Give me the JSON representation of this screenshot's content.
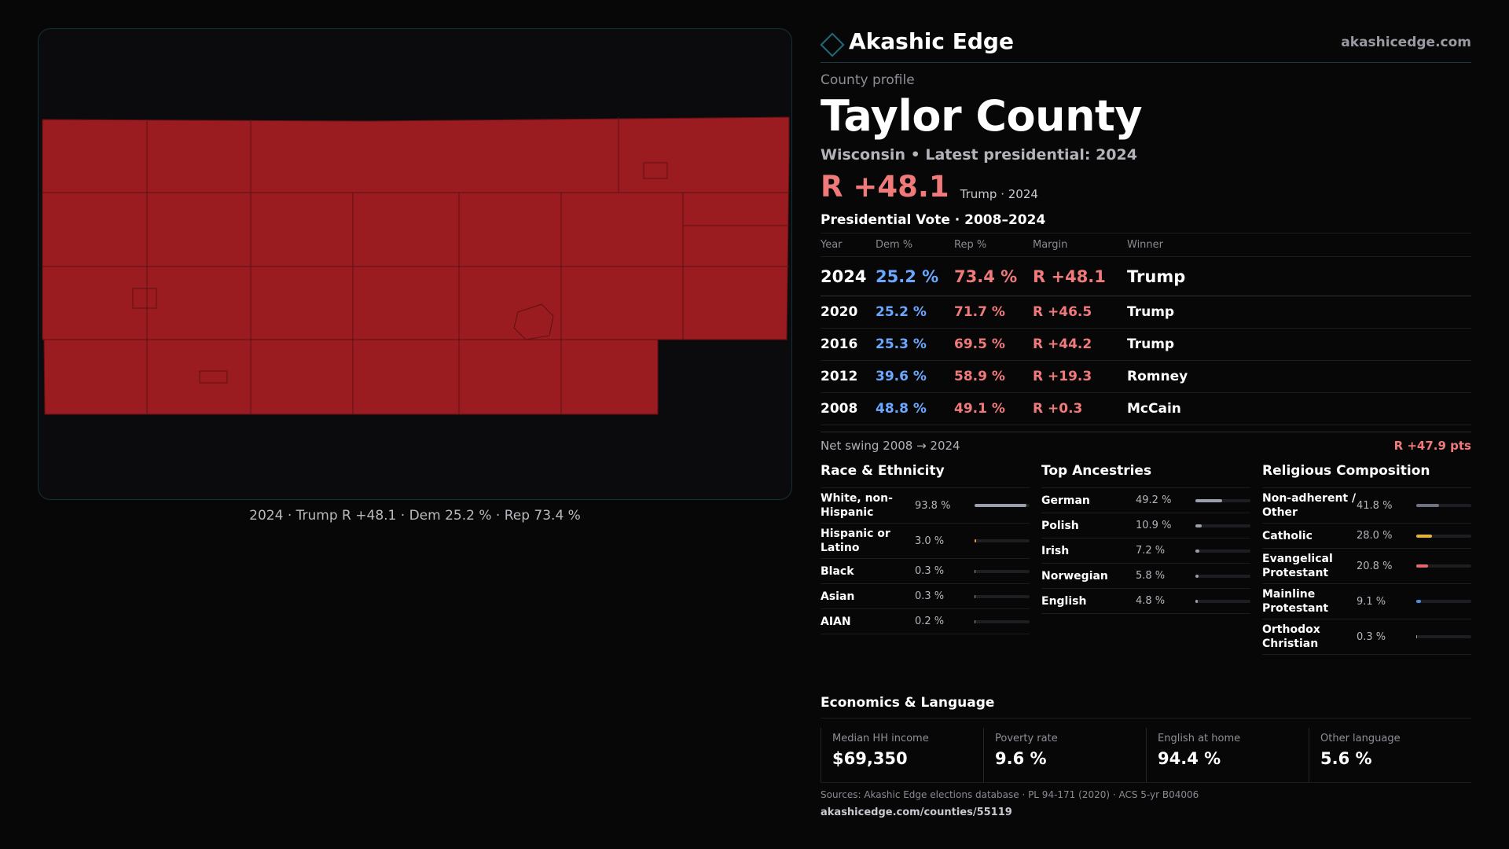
{
  "brand": {
    "name": "Akashic Edge",
    "url": "akashicedge.com",
    "accent": "#1f6b7a"
  },
  "profile": {
    "kicker": "County profile",
    "title": "Taylor County",
    "subtitle": "Wisconsin • Latest presidential: 2024",
    "headline_margin": "R +48.1",
    "headline_note": "Trump · 2024"
  },
  "map": {
    "caption": "2024 · Trump R +48.1 · Dem 25.2 % · Rep 73.4 %",
    "fill": "#9b1c20",
    "stroke": "#5e1013"
  },
  "votes": {
    "title": "Presidential Vote · 2008–2024",
    "headers": {
      "year": "Year",
      "dem": "Dem %",
      "rep": "Rep %",
      "margin": "Margin",
      "winner": "Winner"
    },
    "rows": [
      {
        "year": "2024",
        "dem": "25.2 %",
        "rep": "73.4 %",
        "margin": "R +48.1",
        "winner": "Trump"
      },
      {
        "year": "2020",
        "dem": "25.2 %",
        "rep": "71.7 %",
        "margin": "R +46.5",
        "winner": "Trump"
      },
      {
        "year": "2016",
        "dem": "25.3 %",
        "rep": "69.5 %",
        "margin": "R +44.2",
        "winner": "Trump"
      },
      {
        "year": "2012",
        "dem": "39.6 %",
        "rep": "58.9 %",
        "margin": "R +19.3",
        "winner": "Romney"
      },
      {
        "year": "2008",
        "dem": "48.8 %",
        "rep": "49.1 %",
        "margin": "R +0.3",
        "winner": "McCain"
      }
    ],
    "swing_label": "Net swing 2008 → 2024",
    "swing_value": "R +47.9 pts"
  },
  "race": {
    "title": "Race & Ethnicity",
    "items": [
      {
        "label": "White, non-Hispanic",
        "value": "93.8 %",
        "pct": 93.8,
        "color": "#9aa0ab"
      },
      {
        "label": "Hispanic or Latino",
        "value": "3.0 %",
        "pct": 3.0,
        "color": "#e0a21c"
      },
      {
        "label": "Black",
        "value": "0.3 %",
        "pct": 0.3,
        "color": "#9aa0ab"
      },
      {
        "label": "Asian",
        "value": "0.3 %",
        "pct": 0.3,
        "color": "#9aa0ab"
      },
      {
        "label": "AIAN",
        "value": "0.2 %",
        "pct": 0.2,
        "color": "#9aa0ab"
      }
    ]
  },
  "ancestry": {
    "title": "Top Ancestries",
    "items": [
      {
        "label": "German",
        "value": "49.2 %",
        "pct": 49.2,
        "color": "#9aa0ab"
      },
      {
        "label": "Polish",
        "value": "10.9 %",
        "pct": 10.9,
        "color": "#9aa0ab"
      },
      {
        "label": "Irish",
        "value": "7.2 %",
        "pct": 7.2,
        "color": "#9aa0ab"
      },
      {
        "label": "Norwegian",
        "value": "5.8 %",
        "pct": 5.8,
        "color": "#9aa0ab"
      },
      {
        "label": "English",
        "value": "4.8 %",
        "pct": 4.8,
        "color": "#9aa0ab"
      }
    ]
  },
  "religion": {
    "title": "Religious Composition",
    "items": [
      {
        "label": "Non-adherent / Other",
        "value": "41.8 %",
        "pct": 41.8,
        "color": "#6e7380"
      },
      {
        "label": "Catholic",
        "value": "28.0 %",
        "pct": 28.0,
        "color": "#e0b43a"
      },
      {
        "label": "Evangelical Protestant",
        "value": "20.8 %",
        "pct": 20.8,
        "color": "#e06a6a"
      },
      {
        "label": "Mainline Protestant",
        "value": "9.1 %",
        "pct": 9.1,
        "color": "#4a8fe0"
      },
      {
        "label": "Orthodox Christian",
        "value": "0.3 %",
        "pct": 0.3,
        "color": "#9aa0ab"
      }
    ]
  },
  "economics": {
    "title": "Economics & Language",
    "stats": [
      {
        "label": "Median HH income",
        "value": "$69,350"
      },
      {
        "label": "Poverty rate",
        "value": "9.6 %"
      },
      {
        "label": "English at home",
        "value": "94.4 %"
      },
      {
        "label": "Other language",
        "value": "5.6 %"
      }
    ]
  },
  "footer": {
    "sources": "Sources: Akashic Edge elections database · PL 94-171 (2020) · ACS 5-yr B04006",
    "url": "akashicedge.com/counties/55119"
  }
}
